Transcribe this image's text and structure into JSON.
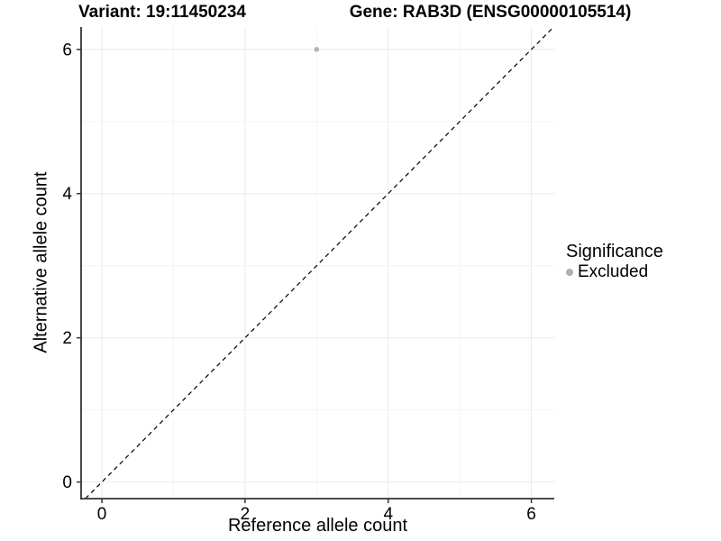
{
  "header": {
    "title_left": "Variant: 19:11450234",
    "title_right": "Gene: RAB3D (ENSG00000105514)"
  },
  "chart_data": {
    "type": "scatter",
    "title_left": "Variant: 19:11450234",
    "title_right": "Gene: RAB3D (ENSG00000105514)",
    "xlabel": "Reference allele count",
    "ylabel": "Alternative allele count",
    "xlim": [
      -0.29,
      6.32
    ],
    "ylim": [
      -0.23,
      6.31
    ],
    "xticks": [
      0,
      2,
      4,
      6
    ],
    "yticks": [
      0,
      2,
      4,
      6
    ],
    "minor_xticks": [
      1,
      3,
      5
    ],
    "minor_yticks": [
      1,
      3,
      5
    ],
    "grid": "on",
    "series": [
      {
        "name": "Excluded",
        "points": [
          {
            "x": 3,
            "y": 6
          }
        ],
        "color": "#b4b4b4"
      }
    ],
    "reference_line": {
      "kind": "identity",
      "slope": 1,
      "intercept": 0,
      "style": "dashed",
      "color": "#000000"
    },
    "legend": {
      "position": "right",
      "title": "Significance",
      "items": [
        {
          "label": "Excluded",
          "color": "#b0b0b0"
        }
      ]
    },
    "colors": {
      "background": "#ffffff",
      "grid_major": "#ebebeb",
      "grid_minor": "#f4f4f4",
      "axis_line": "#333333",
      "tick_label": "#000000",
      "point": "#b4b4b4"
    }
  }
}
